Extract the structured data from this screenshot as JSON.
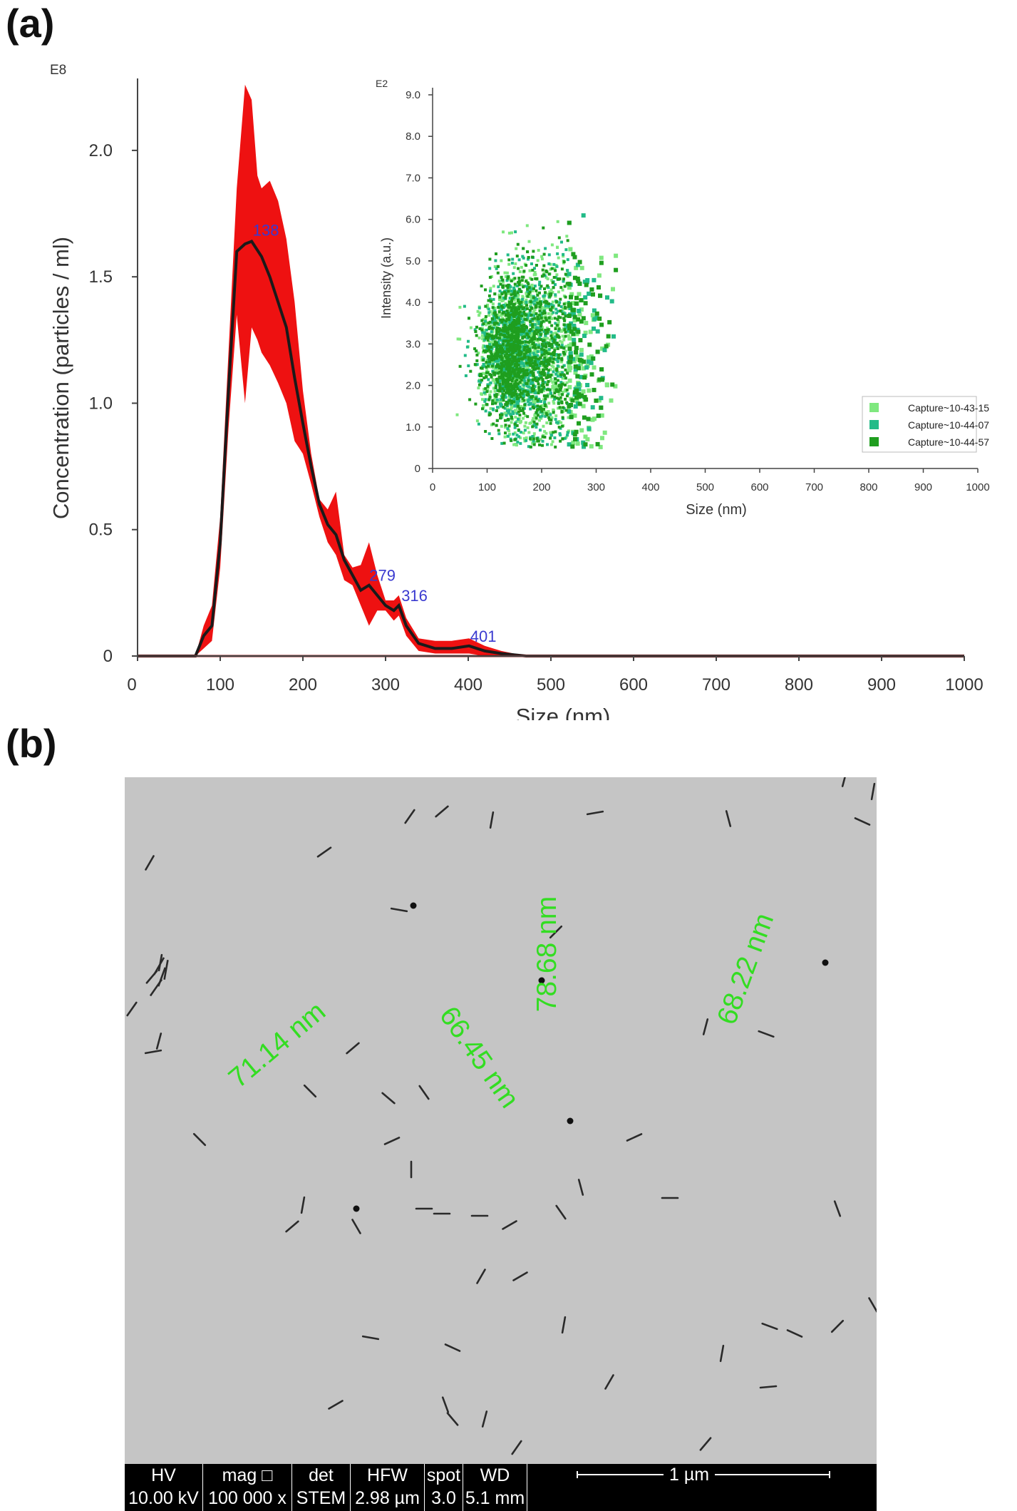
{
  "panels": {
    "a": "(a)",
    "b": "(b)"
  },
  "chart_data": [
    {
      "type": "line",
      "panel": "(a)",
      "xlabel": "Size (nm)",
      "ylabel": "Concentration (particles / ml)",
      "exponent_label": "E8",
      "xlim": [
        0,
        1000
      ],
      "ylim": [
        0,
        2.2
      ],
      "xticks": [
        "0",
        "100",
        "200",
        "300",
        "400",
        "500",
        "600",
        "700",
        "800",
        "900",
        "1000"
      ],
      "yticks": [
        "0",
        "0.5",
        "1.0",
        "1.5",
        "2.0"
      ],
      "ytick_values": [
        0,
        0.5,
        1.0,
        1.5,
        2.0
      ],
      "mean_line": {
        "x": [
          0,
          70,
          80,
          90,
          100,
          110,
          120,
          130,
          138,
          150,
          160,
          170,
          180,
          190,
          200,
          210,
          220,
          230,
          240,
          250,
          260,
          270,
          280,
          290,
          300,
          310,
          316,
          325,
          340,
          360,
          380,
          401,
          420,
          440,
          470,
          500,
          1000
        ],
        "y": [
          0,
          0,
          0.08,
          0.12,
          0.45,
          1.05,
          1.6,
          1.63,
          1.64,
          1.58,
          1.5,
          1.4,
          1.3,
          1.1,
          0.92,
          0.75,
          0.6,
          0.52,
          0.48,
          0.38,
          0.32,
          0.26,
          0.28,
          0.24,
          0.2,
          0.18,
          0.2,
          0.12,
          0.05,
          0.03,
          0.03,
          0.04,
          0.02,
          0.01,
          0,
          0,
          0
        ]
      },
      "error_band": {
        "x": [
          0,
          70,
          80,
          90,
          100,
          110,
          120,
          130,
          138,
          145,
          150,
          160,
          170,
          180,
          190,
          200,
          210,
          220,
          230,
          240,
          250,
          260,
          270,
          280,
          290,
          300,
          310,
          316,
          325,
          340,
          360,
          380,
          401,
          420,
          440,
          470,
          500,
          1000
        ],
        "upper": [
          0,
          0,
          0.12,
          0.2,
          0.55,
          1.2,
          1.85,
          2.26,
          2.2,
          1.9,
          1.85,
          1.88,
          1.8,
          1.65,
          1.4,
          1.05,
          0.8,
          0.62,
          0.58,
          0.65,
          0.4,
          0.35,
          0.36,
          0.45,
          0.32,
          0.22,
          0.22,
          0.24,
          0.15,
          0.07,
          0.06,
          0.06,
          0.07,
          0.04,
          0.02,
          0,
          0,
          0
        ],
        "lower": [
          0,
          0,
          0.03,
          0.06,
          0.35,
          0.9,
          1.35,
          1.0,
          1.3,
          1.25,
          1.2,
          1.15,
          1.08,
          1.0,
          0.85,
          0.8,
          0.68,
          0.55,
          0.45,
          0.4,
          0.3,
          0.28,
          0.2,
          0.12,
          0.18,
          0.18,
          0.14,
          0.16,
          0.08,
          0.02,
          0.01,
          0.01,
          0.01,
          0,
          0,
          0,
          0,
          0
        ]
      },
      "peak_labels": [
        {
          "x": 138,
          "y": 1.64,
          "text": "138"
        },
        {
          "x": 279,
          "y": 0.28,
          "text": "279"
        },
        {
          "x": 316,
          "y": 0.2,
          "text": "316"
        },
        {
          "x": 401,
          "y": 0.04,
          "text": "401"
        }
      ],
      "colors": {
        "band": "#ee1111",
        "line": "#1a1a1a",
        "peak_label": "#3a3ad0",
        "axis": "#444444"
      }
    },
    {
      "type": "scatter",
      "panel": "(a) inset",
      "xlabel": "Size (nm)",
      "ylabel": "Intensity (a.u.)",
      "exponent_label": "E2",
      "xlim": [
        0,
        1000
      ],
      "ylim": [
        0,
        9.0
      ],
      "xticks": [
        "0",
        "100",
        "200",
        "300",
        "400",
        "500",
        "600",
        "700",
        "800",
        "900",
        "1000"
      ],
      "yticks": [
        "0",
        "1.0",
        "2.0",
        "3.0",
        "4.0",
        "5.0",
        "6.0",
        "7.0",
        "8.0",
        "9.0"
      ],
      "ytick_values": [
        0,
        1,
        2,
        3,
        4,
        5,
        6,
        7,
        8,
        9
      ],
      "legend_position": "bottom-right",
      "series": [
        {
          "name": "Capture~10-43-15",
          "color": "#7fe87f"
        },
        {
          "name": "Capture~10-44-07",
          "color": "#22bb88"
        },
        {
          "name": "Capture~10-44-57",
          "color": "#1f9e1f"
        }
      ],
      "distribution_note_values": {
        "x_mean": 160,
        "x_sd": 55,
        "y_mean": 2.8,
        "y_sd": 1.1,
        "points_per_series": 1300
      }
    }
  ],
  "tem": {
    "measurements": [
      "71.14 nm",
      "66.45 nm",
      "78.68 nm",
      "68.22 nm"
    ],
    "measure_color": "#33dd22",
    "info_bar": {
      "headers": [
        "HV",
        "mag □",
        "det",
        "HFW",
        "spot",
        "WD"
      ],
      "values": [
        "10.00 kV",
        "100 000 x",
        "STEM",
        "2.98 µm",
        "3.0",
        "5.1 mm"
      ],
      "scale_bar": "1 µm"
    }
  }
}
